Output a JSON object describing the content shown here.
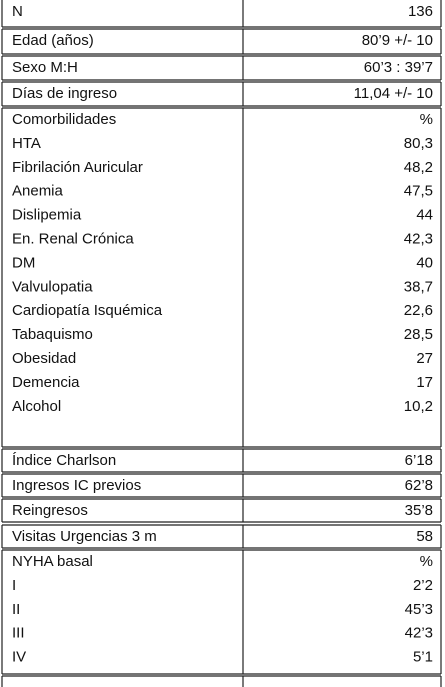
{
  "table": {
    "blocks": [
      {
        "rows": [
          [
            "N",
            "136"
          ]
        ]
      },
      {
        "rows": [
          [
            "Edad (años)",
            "80’9 +/- 10"
          ]
        ]
      },
      {
        "rows": [
          [
            "Sexo M:H",
            "60’3 : 39’7"
          ]
        ]
      },
      {
        "rows": [
          [
            "Días de ingreso",
            "11,04 +/- 10"
          ]
        ]
      },
      {
        "rows": [
          [
            "Comorbilidades",
            "%"
          ],
          [
            "HTA",
            "80,3"
          ],
          [
            "Fibrilación Auricular",
            "48,2"
          ],
          [
            "Anemia",
            "47,5"
          ],
          [
            "Dislipemia",
            "44"
          ],
          [
            "En. Renal Crónica",
            "42,3"
          ],
          [
            "DM",
            "40"
          ],
          [
            "Valvulopatia",
            "38,7"
          ],
          [
            "Cardiopatía Isquémica",
            "22,6"
          ],
          [
            "Tabaquismo",
            "28,5"
          ],
          [
            "Obesidad",
            "27"
          ],
          [
            "Demencia",
            "17"
          ],
          [
            "Alcohol",
            "10,2"
          ]
        ]
      },
      {
        "rows": [
          [
            "Índice Charlson",
            "6’18"
          ]
        ]
      },
      {
        "rows": [
          [
            "Ingresos IC previos",
            "62’8"
          ]
        ]
      },
      {
        "rows": [
          [
            "Reingresos",
            "35’8"
          ]
        ]
      },
      {
        "rows": [
          [
            "Visitas Urgencias 3 m",
            "58"
          ]
        ]
      },
      {
        "rows": [
          [
            "NYHA basal",
            "%"
          ],
          [
            "I",
            "2’2"
          ],
          [
            "II",
            "45’3"
          ],
          [
            "III",
            "42’3"
          ],
          [
            "IV",
            "5’1"
          ]
        ]
      }
    ]
  }
}
